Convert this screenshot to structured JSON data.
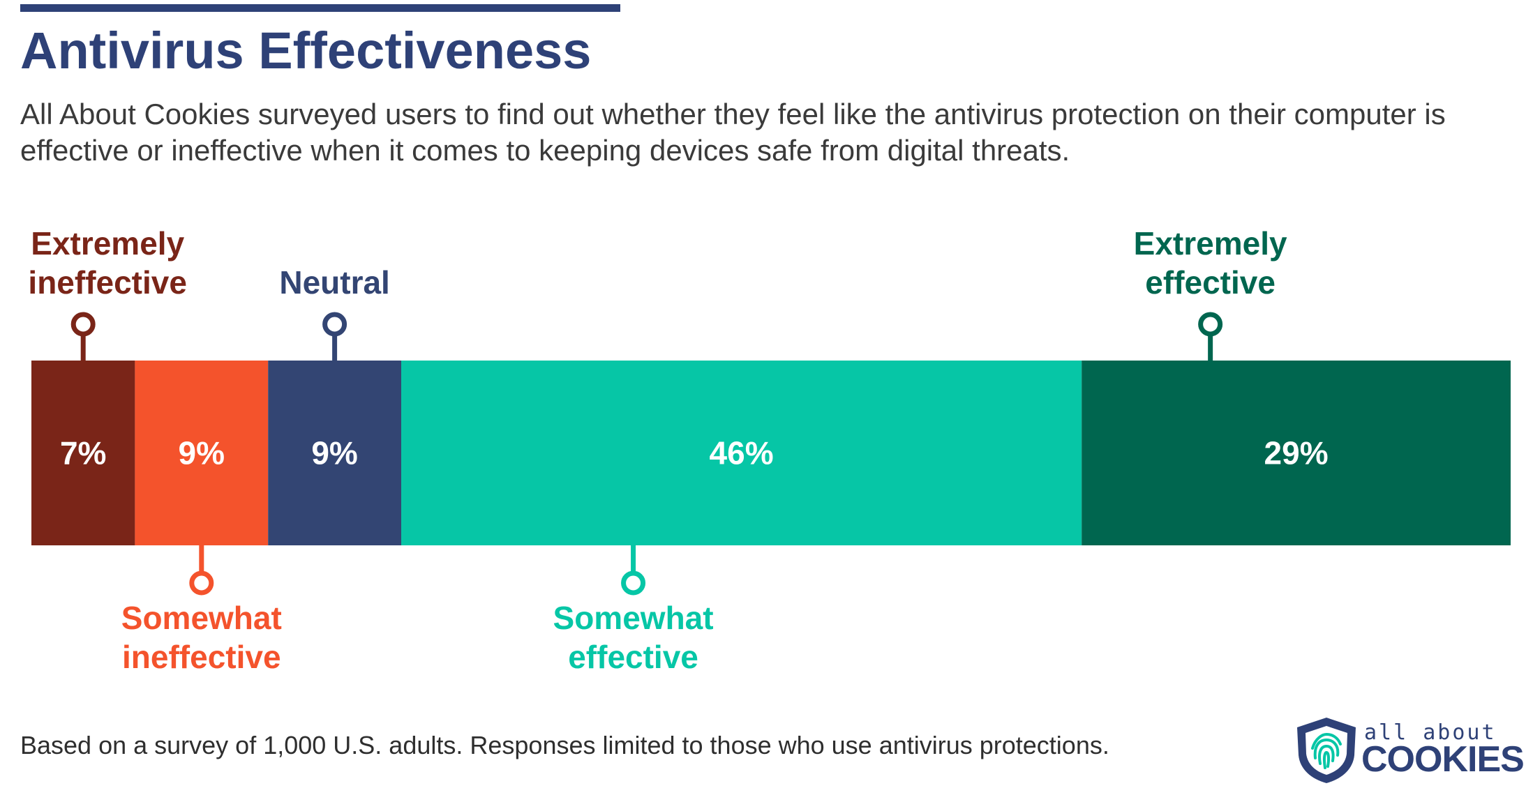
{
  "header": {
    "title": "Antivirus Effectiveness",
    "subtitle": "All About Cookies surveyed users to find out whether they feel like the antivirus protection on their computer is effective or ineffective when it comes to keeping devices safe from digital threats."
  },
  "chart_data": {
    "type": "bar",
    "orientation": "horizontal-stacked-100",
    "categories": [
      "Extremely ineffective",
      "Somewhat ineffective",
      "Neutral",
      "Somewhat effective",
      "Extremely effective"
    ],
    "values": [
      7,
      9,
      9,
      46,
      29
    ],
    "value_labels": [
      "7%",
      "9%",
      "9%",
      "46%",
      "29%"
    ],
    "label_lines": [
      [
        "Extremely",
        "ineffective"
      ],
      [
        "Somewhat",
        "ineffective"
      ],
      [
        "Neutral"
      ],
      [
        "Somewhat",
        "effective"
      ],
      [
        "Extremely",
        "effective"
      ]
    ],
    "label_placement": [
      "above",
      "below",
      "above",
      "below",
      "above"
    ],
    "colors": [
      "#7a2518",
      "#f4532c",
      "#334573",
      "#06c6a6",
      "#00664f"
    ],
    "value_label_color": "#ffffff"
  },
  "footer": {
    "note": "Based on a survey of 1,000 U.S. adults. Responses limited to those who use antivirus protections.",
    "logo": {
      "top_text": "all about",
      "bottom_text": "COOKIES",
      "icon": "fingerprint-shield-icon",
      "color": "#2e4177",
      "accent": "#06c6a6"
    }
  },
  "colors": {
    "title": "#2e4177",
    "text": "#3a3a3a"
  }
}
